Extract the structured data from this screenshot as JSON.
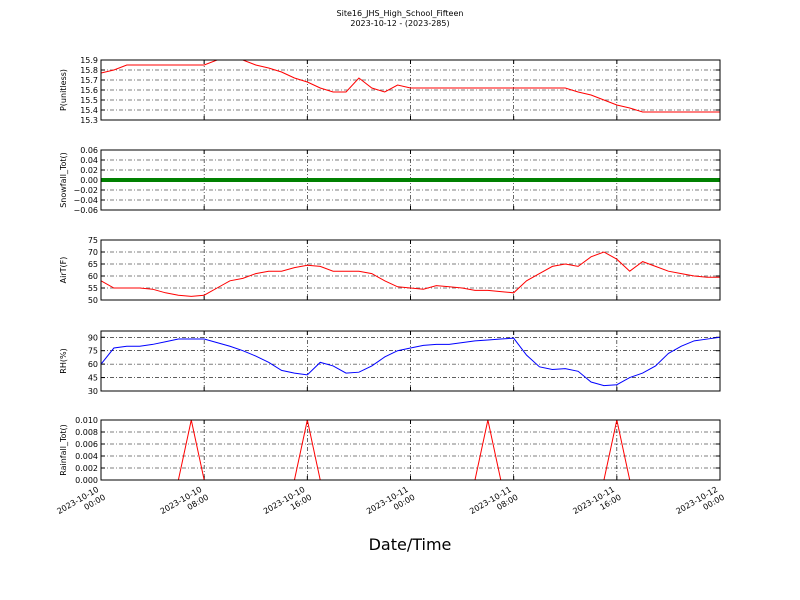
{
  "chart_data": [
    {
      "type": "line",
      "title": "Site16_JHS_High_School_Fifteen",
      "subtitle": "2023-10-12 - (2023-285)",
      "ylabel": "P(unitless)",
      "x": [
        "2023-10-10 00:00",
        "2023-10-10 01:00",
        "2023-10-10 02:00",
        "2023-10-10 03:00",
        "2023-10-10 04:00",
        "2023-10-10 05:00",
        "2023-10-10 06:00",
        "2023-10-10 07:00",
        "2023-10-10 08:00",
        "2023-10-10 09:00",
        "2023-10-10 10:00",
        "2023-10-10 11:00",
        "2023-10-10 12:00",
        "2023-10-10 13:00",
        "2023-10-10 14:00",
        "2023-10-10 15:00",
        "2023-10-10 16:00",
        "2023-10-10 17:00",
        "2023-10-10 18:00",
        "2023-10-10 19:00",
        "2023-10-10 20:00",
        "2023-10-10 21:00",
        "2023-10-10 22:00",
        "2023-10-10 23:00",
        "2023-10-11 00:00",
        "2023-10-11 01:00",
        "2023-10-11 02:00",
        "2023-10-11 03:00",
        "2023-10-11 04:00",
        "2023-10-11 05:00",
        "2023-10-11 06:00",
        "2023-10-11 07:00",
        "2023-10-11 08:00",
        "2023-10-11 09:00",
        "2023-10-11 10:00",
        "2023-10-11 11:00",
        "2023-10-11 12:00",
        "2023-10-11 13:00",
        "2023-10-11 14:00",
        "2023-10-11 15:00",
        "2023-10-11 16:00",
        "2023-10-11 17:00",
        "2023-10-11 18:00",
        "2023-10-11 19:00",
        "2023-10-11 20:00",
        "2023-10-11 21:00",
        "2023-10-11 22:00",
        "2023-10-11 23:00",
        "2023-10-12 00:00"
      ],
      "series": [
        {
          "color": "#ff0000",
          "values": [
            15.77,
            15.8,
            15.85,
            15.85,
            15.85,
            15.85,
            15.85,
            15.85,
            15.85,
            15.9,
            15.9,
            15.9,
            15.85,
            15.82,
            15.78,
            15.72,
            15.68,
            15.62,
            15.58,
            15.58,
            15.72,
            15.62,
            15.58,
            15.65,
            15.62,
            15.62,
            15.62,
            15.62,
            15.62,
            15.62,
            15.62,
            15.62,
            15.62,
            15.62,
            15.62,
            15.62,
            15.62,
            15.58,
            15.55,
            15.5,
            15.45,
            15.42,
            15.38,
            15.38,
            15.38,
            15.38,
            15.38,
            15.38,
            15.38
          ]
        }
      ],
      "xlim": [
        "2023-10-10 00:00",
        "2023-10-12 00:00"
      ],
      "ylim": [
        15.3,
        15.9
      ],
      "yticks": [
        15.3,
        15.4,
        15.5,
        15.6,
        15.7,
        15.8,
        15.9
      ],
      "grid": true
    },
    {
      "type": "line",
      "ylabel": "Snowfall_Tot()",
      "x": [
        "2023-10-10 00:00",
        "2023-10-10 01:00",
        "2023-10-10 02:00",
        "2023-10-10 03:00",
        "2023-10-10 04:00",
        "2023-10-10 05:00",
        "2023-10-10 06:00",
        "2023-10-10 07:00",
        "2023-10-10 08:00",
        "2023-10-10 09:00",
        "2023-10-10 10:00",
        "2023-10-10 11:00",
        "2023-10-10 12:00",
        "2023-10-10 13:00",
        "2023-10-10 14:00",
        "2023-10-10 15:00",
        "2023-10-10 16:00",
        "2023-10-10 17:00",
        "2023-10-10 18:00",
        "2023-10-10 19:00",
        "2023-10-10 20:00",
        "2023-10-10 21:00",
        "2023-10-10 22:00",
        "2023-10-10 23:00",
        "2023-10-11 00:00",
        "2023-10-11 01:00",
        "2023-10-11 02:00",
        "2023-10-11 03:00",
        "2023-10-11 04:00",
        "2023-10-11 05:00",
        "2023-10-11 06:00",
        "2023-10-11 07:00",
        "2023-10-11 08:00",
        "2023-10-11 09:00",
        "2023-10-11 10:00",
        "2023-10-11 11:00",
        "2023-10-11 12:00",
        "2023-10-11 13:00",
        "2023-10-11 14:00",
        "2023-10-11 15:00",
        "2023-10-11 16:00",
        "2023-10-11 17:00",
        "2023-10-11 18:00",
        "2023-10-11 19:00",
        "2023-10-11 20:00",
        "2023-10-11 21:00",
        "2023-10-11 22:00",
        "2023-10-11 23:00",
        "2023-10-12 00:00"
      ],
      "series": [
        {
          "color": "#008000",
          "values": [
            0,
            0,
            0,
            0,
            0,
            0,
            0,
            0,
            0,
            0,
            0,
            0,
            0,
            0,
            0,
            0,
            0,
            0,
            0,
            0,
            0,
            0,
            0,
            0,
            0,
            0,
            0,
            0,
            0,
            0,
            0,
            0,
            0,
            0,
            0,
            0,
            0,
            0,
            0,
            0,
            0,
            0,
            0,
            0,
            0,
            0,
            0,
            0,
            0
          ]
        }
      ],
      "xlim": [
        "2023-10-10 00:00",
        "2023-10-12 00:00"
      ],
      "ylim": [
        -0.06,
        0.06
      ],
      "yticks": [
        {
          "value": -0.06,
          "label": "−0.06"
        },
        {
          "value": -0.04,
          "label": "−0.04"
        },
        {
          "value": -0.02,
          "label": "−0.02"
        },
        {
          "value": 0,
          "label": "0.00"
        },
        {
          "value": 0.02,
          "label": "0.02"
        },
        {
          "value": 0.04,
          "label": "0.04"
        },
        {
          "value": 0.06,
          "label": "0.06"
        }
      ],
      "grid": true
    },
    {
      "type": "line",
      "ylabel": "AirT(F)",
      "x": [
        "2023-10-10 00:00",
        "2023-10-10 01:00",
        "2023-10-10 02:00",
        "2023-10-10 03:00",
        "2023-10-10 04:00",
        "2023-10-10 05:00",
        "2023-10-10 06:00",
        "2023-10-10 07:00",
        "2023-10-10 08:00",
        "2023-10-10 09:00",
        "2023-10-10 10:00",
        "2023-10-10 11:00",
        "2023-10-10 12:00",
        "2023-10-10 13:00",
        "2023-10-10 14:00",
        "2023-10-10 15:00",
        "2023-10-10 16:00",
        "2023-10-10 17:00",
        "2023-10-10 18:00",
        "2023-10-10 19:00",
        "2023-10-10 20:00",
        "2023-10-10 21:00",
        "2023-10-10 22:00",
        "2023-10-10 23:00",
        "2023-10-11 00:00",
        "2023-10-11 01:00",
        "2023-10-11 02:00",
        "2023-10-11 03:00",
        "2023-10-11 04:00",
        "2023-10-11 05:00",
        "2023-10-11 06:00",
        "2023-10-11 07:00",
        "2023-10-11 08:00",
        "2023-10-11 09:00",
        "2023-10-11 10:00",
        "2023-10-11 11:00",
        "2023-10-11 12:00",
        "2023-10-11 13:00",
        "2023-10-11 14:00",
        "2023-10-11 15:00",
        "2023-10-11 16:00",
        "2023-10-11 17:00",
        "2023-10-11 18:00",
        "2023-10-11 19:00",
        "2023-10-11 20:00",
        "2023-10-11 21:00",
        "2023-10-11 22:00",
        "2023-10-11 23:00",
        "2023-10-12 00:00"
      ],
      "series": [
        {
          "color": "#ff0000",
          "values": [
            58,
            55,
            55,
            55,
            54.5,
            53,
            52,
            51.5,
            52,
            55,
            58,
            59,
            61,
            62,
            62,
            63.5,
            64.5,
            64,
            62,
            62,
            62,
            61,
            58,
            55.5,
            55,
            54.5,
            56,
            55.5,
            55,
            54,
            54,
            53.5,
            53,
            58,
            61,
            64,
            65,
            64,
            68,
            70,
            67,
            62,
            66,
            64,
            62,
            61,
            60,
            59.5,
            59.5
          ]
        }
      ],
      "xlim": [
        "2023-10-10 00:00",
        "2023-10-12 00:00"
      ],
      "ylim": [
        50,
        75
      ],
      "yticks": [
        50,
        55,
        60,
        65,
        70,
        75
      ],
      "grid": true
    },
    {
      "type": "line",
      "ylabel": "RH(%)",
      "x": [
        "2023-10-10 00:00",
        "2023-10-10 01:00",
        "2023-10-10 02:00",
        "2023-10-10 03:00",
        "2023-10-10 04:00",
        "2023-10-10 05:00",
        "2023-10-10 06:00",
        "2023-10-10 07:00",
        "2023-10-10 08:00",
        "2023-10-10 09:00",
        "2023-10-10 10:00",
        "2023-10-10 11:00",
        "2023-10-10 12:00",
        "2023-10-10 13:00",
        "2023-10-10 14:00",
        "2023-10-10 15:00",
        "2023-10-10 16:00",
        "2023-10-10 17:00",
        "2023-10-10 18:00",
        "2023-10-10 19:00",
        "2023-10-10 20:00",
        "2023-10-10 21:00",
        "2023-10-10 22:00",
        "2023-10-10 23:00",
        "2023-10-11 00:00",
        "2023-10-11 01:00",
        "2023-10-11 02:00",
        "2023-10-11 03:00",
        "2023-10-11 04:00",
        "2023-10-11 05:00",
        "2023-10-11 06:00",
        "2023-10-11 07:00",
        "2023-10-11 08:00",
        "2023-10-11 09:00",
        "2023-10-11 10:00",
        "2023-10-11 11:00",
        "2023-10-11 12:00",
        "2023-10-11 13:00",
        "2023-10-11 14:00",
        "2023-10-11 15:00",
        "2023-10-11 16:00",
        "2023-10-11 17:00",
        "2023-10-11 18:00",
        "2023-10-11 19:00",
        "2023-10-11 20:00",
        "2023-10-11 21:00",
        "2023-10-11 22:00",
        "2023-10-11 23:00",
        "2023-10-12 00:00"
      ],
      "series": [
        {
          "color": "#0000ff",
          "values": [
            60,
            78,
            80,
            80,
            82,
            85,
            88,
            88,
            88,
            84,
            80,
            75,
            69,
            62,
            53,
            50,
            48,
            62,
            58,
            50,
            51,
            58,
            68,
            75,
            78,
            81,
            82,
            82,
            84,
            86,
            87,
            88,
            89,
            70,
            57,
            54,
            55,
            52,
            40,
            36,
            37,
            45,
            50,
            58,
            72,
            80,
            86,
            88,
            90
          ]
        }
      ],
      "xlim": [
        "2023-10-10 00:00",
        "2023-10-12 00:00"
      ],
      "ylim": [
        30,
        97
      ],
      "yticks": [
        30,
        45,
        60,
        75,
        90
      ],
      "grid": true
    },
    {
      "type": "line",
      "ylabel": "Rainfall_Tot()",
      "xlabel": "Date/Time",
      "x": [
        "2023-10-10 00:00",
        "2023-10-10 01:00",
        "2023-10-10 02:00",
        "2023-10-10 03:00",
        "2023-10-10 04:00",
        "2023-10-10 05:00",
        "2023-10-10 06:00",
        "2023-10-10 07:00",
        "2023-10-10 08:00",
        "2023-10-10 09:00",
        "2023-10-10 10:00",
        "2023-10-10 11:00",
        "2023-10-10 12:00",
        "2023-10-10 13:00",
        "2023-10-10 14:00",
        "2023-10-10 15:00",
        "2023-10-10 16:00",
        "2023-10-10 17:00",
        "2023-10-10 18:00",
        "2023-10-10 19:00",
        "2023-10-10 20:00",
        "2023-10-10 21:00",
        "2023-10-10 22:00",
        "2023-10-10 23:00",
        "2023-10-11 00:00",
        "2023-10-11 01:00",
        "2023-10-11 02:00",
        "2023-10-11 03:00",
        "2023-10-11 04:00",
        "2023-10-11 05:00",
        "2023-10-11 06:00",
        "2023-10-11 07:00",
        "2023-10-11 08:00",
        "2023-10-11 09:00",
        "2023-10-11 10:00",
        "2023-10-11 11:00",
        "2023-10-11 12:00",
        "2023-10-11 13:00",
        "2023-10-11 14:00",
        "2023-10-11 15:00",
        "2023-10-11 16:00",
        "2023-10-11 17:00",
        "2023-10-11 18:00",
        "2023-10-11 19:00",
        "2023-10-11 20:00",
        "2023-10-11 21:00",
        "2023-10-11 22:00",
        "2023-10-11 23:00",
        "2023-10-12 00:00"
      ],
      "series": [
        {
          "color": "#ff0000",
          "values": [
            0,
            0,
            0,
            0,
            0,
            0,
            0,
            0.01,
            0,
            0,
            0,
            0,
            0,
            0,
            0,
            0,
            0.01,
            0,
            0,
            0,
            0,
            0,
            0,
            0,
            0,
            0,
            0,
            0,
            0,
            0,
            0.01,
            0,
            0,
            0,
            0,
            0,
            0,
            0,
            0,
            0,
            0.01,
            0,
            0,
            0,
            0,
            0,
            0,
            0,
            0
          ]
        }
      ],
      "xlim": [
        "2023-10-10 00:00",
        "2023-10-12 00:00"
      ],
      "ylim": [
        0,
        0.01
      ],
      "yticks": [
        {
          "value": 0,
          "label": "0.000"
        },
        {
          "value": 0.002,
          "label": "0.002"
        },
        {
          "value": 0.004,
          "label": "0.004"
        },
        {
          "value": 0.006,
          "label": "0.006"
        },
        {
          "value": 0.008,
          "label": "0.008"
        },
        {
          "value": 0.01,
          "label": "0.010"
        }
      ],
      "xticks": [
        "2023-10-10 00:00",
        "2023-10-10 08:00",
        "2023-10-10 16:00",
        "2023-10-11 00:00",
        "2023-10-11 08:00",
        "2023-10-11 16:00",
        "2023-10-12 00:00"
      ],
      "grid": true
    }
  ]
}
